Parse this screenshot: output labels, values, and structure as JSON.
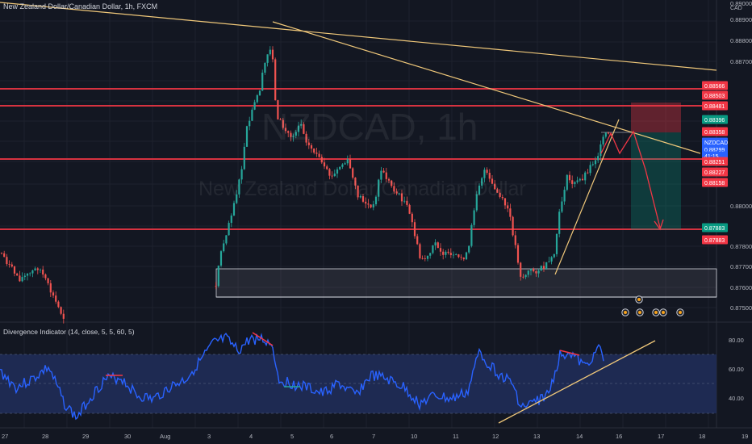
{
  "header": {
    "title": "New Zealand Dollar/Canadian Dollar, 1h, FXCM",
    "currency": "CAD",
    "watermark_symbol": "NZDCAD, 1h",
    "watermark_name": "New Zealand Dollar/Canadian Dollar"
  },
  "indicator": {
    "title": "Divergence Indicator (14, close, 5, 5, 60, 5)",
    "levels": [
      "80.00",
      "60.00",
      "40.00"
    ]
  },
  "price_axis": {
    "ticks": [
      "0.89000",
      "0.88900",
      "0.88800",
      "0.88700",
      "0.88000",
      "0.87800",
      "0.87700",
      "0.87600",
      "0.87500"
    ],
    "tags": [
      {
        "label": "0.88566",
        "color": "#f23645"
      },
      {
        "label": "0.88503",
        "color": "#f23645"
      },
      {
        "label": "0.88481",
        "color": "#f23645"
      },
      {
        "label": "0.88396",
        "color": "#089981"
      },
      {
        "label": "0.88358",
        "color": "#f23645"
      },
      {
        "label": "NZDCAD",
        "color": "#2962ff"
      },
      {
        "label": "0.88299",
        "color": "#2962ff"
      },
      {
        "label": "41:15",
        "color": "#2962ff"
      },
      {
        "label": "0.88251",
        "color": "#f23645"
      },
      {
        "label": "0.88227",
        "color": "#f23645"
      },
      {
        "label": "0.88158",
        "color": "#f23645"
      },
      {
        "label": "0.87883",
        "color": "#089981"
      },
      {
        "label": "0.87883",
        "color": "#f23645"
      }
    ]
  },
  "time_axis": {
    "labels": [
      "27",
      "28",
      "29",
      "30",
      "Aug",
      "3",
      "4",
      "5",
      "6",
      "7",
      "10",
      "11",
      "12",
      "13",
      "14",
      "16",
      "17",
      "18",
      "19"
    ]
  },
  "colors": {
    "background": "#131722",
    "up": "#26a69a",
    "down": "#ef5350",
    "resistance": "#f23645",
    "trendline": "#f0c87a",
    "rsi_line": "#2962ff",
    "rsi_band": "#1e2a52"
  }
}
